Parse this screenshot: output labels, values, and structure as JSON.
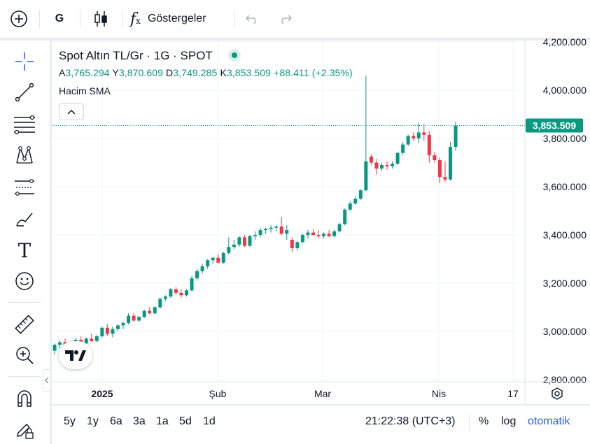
{
  "toolbar": {
    "interval": "G",
    "indicators_label": "Göstergeler"
  },
  "legend": {
    "title": "Spot Altın TL/Gr · 1G · SPOT",
    "open_label": "A",
    "open": "3,765.294",
    "high_label": "Y",
    "high": "3,870.609",
    "low_label": "D",
    "low": "3,749.285",
    "close_label": "K",
    "close": "3,853.509",
    "change": "+88.411 (+2.35%)",
    "indicator": "Hacim SMA"
  },
  "price_axis": {
    "ticks": [
      "4,200.000",
      "4,000.000",
      "3,800.000",
      "3,600.000",
      "3,400.000",
      "3,200.000",
      "3,000.000",
      "2,800.000"
    ],
    "current_price_label": "3,853.509"
  },
  "time_axis": {
    "ticks": [
      "2025",
      "Şub",
      "Mar",
      "Nis",
      "17"
    ]
  },
  "bottombar": {
    "ranges": [
      "5y",
      "1y",
      "6a",
      "3a",
      "1a",
      "5d",
      "1d"
    ],
    "clock": "21:22:38 (UTC+3)",
    "percent": "%",
    "log": "log",
    "auto": "otomatik"
  },
  "colors": {
    "up": "#089981",
    "down": "#f23645",
    "accent": "#2962ff"
  },
  "chart_data": {
    "type": "candlestick",
    "ylim": [
      2800,
      4200
    ],
    "current_price": 3853.509,
    "candles": [
      {
        "o": 2920,
        "h": 2950,
        "l": 2905,
        "c": 2945
      },
      {
        "o": 2945,
        "h": 2965,
        "l": 2930,
        "c": 2955
      },
      {
        "o": 2955,
        "h": 2970,
        "l": 2935,
        "c": 2940
      },
      {
        "o": 2940,
        "h": 2960,
        "l": 2930,
        "c": 2955
      },
      {
        "o": 2955,
        "h": 2975,
        "l": 2945,
        "c": 2965
      },
      {
        "o": 2965,
        "h": 2980,
        "l": 2945,
        "c": 2950
      },
      {
        "o": 2950,
        "h": 2975,
        "l": 2945,
        "c": 2970
      },
      {
        "o": 2970,
        "h": 2990,
        "l": 2955,
        "c": 2960
      },
      {
        "o": 2960,
        "h": 2985,
        "l": 2955,
        "c": 2980
      },
      {
        "o": 2980,
        "h": 3020,
        "l": 2975,
        "c": 3015
      },
      {
        "o": 3015,
        "h": 3030,
        "l": 2980,
        "c": 2990
      },
      {
        "o": 2990,
        "h": 3020,
        "l": 2975,
        "c": 3010
      },
      {
        "o": 3010,
        "h": 3030,
        "l": 3000,
        "c": 3025
      },
      {
        "o": 3025,
        "h": 3040,
        "l": 3010,
        "c": 3035
      },
      {
        "o": 3035,
        "h": 3075,
        "l": 3030,
        "c": 3065
      },
      {
        "o": 3065,
        "h": 3075,
        "l": 3040,
        "c": 3045
      },
      {
        "o": 3045,
        "h": 3065,
        "l": 3040,
        "c": 3060
      },
      {
        "o": 3060,
        "h": 3090,
        "l": 3055,
        "c": 3085
      },
      {
        "o": 3085,
        "h": 3100,
        "l": 3070,
        "c": 3075
      },
      {
        "o": 3075,
        "h": 3105,
        "l": 3070,
        "c": 3100
      },
      {
        "o": 3100,
        "h": 3140,
        "l": 3095,
        "c": 3135
      },
      {
        "o": 3135,
        "h": 3150,
        "l": 3125,
        "c": 3145
      },
      {
        "o": 3145,
        "h": 3180,
        "l": 3140,
        "c": 3175
      },
      {
        "o": 3175,
        "h": 3185,
        "l": 3150,
        "c": 3160
      },
      {
        "o": 3160,
        "h": 3175,
        "l": 3140,
        "c": 3150
      },
      {
        "o": 3150,
        "h": 3175,
        "l": 3145,
        "c": 3170
      },
      {
        "o": 3170,
        "h": 3230,
        "l": 3165,
        "c": 3220
      },
      {
        "o": 3220,
        "h": 3260,
        "l": 3210,
        "c": 3250
      },
      {
        "o": 3250,
        "h": 3280,
        "l": 3240,
        "c": 3270
      },
      {
        "o": 3270,
        "h": 3300,
        "l": 3260,
        "c": 3295
      },
      {
        "o": 3295,
        "h": 3310,
        "l": 3280,
        "c": 3305
      },
      {
        "o": 3305,
        "h": 3320,
        "l": 3280,
        "c": 3285
      },
      {
        "o": 3285,
        "h": 3330,
        "l": 3280,
        "c": 3325
      },
      {
        "o": 3325,
        "h": 3390,
        "l": 3320,
        "c": 3350
      },
      {
        "o": 3350,
        "h": 3380,
        "l": 3340,
        "c": 3360
      },
      {
        "o": 3360,
        "h": 3395,
        "l": 3350,
        "c": 3390
      },
      {
        "o": 3390,
        "h": 3400,
        "l": 3350,
        "c": 3355
      },
      {
        "o": 3355,
        "h": 3400,
        "l": 3350,
        "c": 3395
      },
      {
        "o": 3395,
        "h": 3415,
        "l": 3380,
        "c": 3400
      },
      {
        "o": 3400,
        "h": 3430,
        "l": 3390,
        "c": 3420
      },
      {
        "o": 3420,
        "h": 3430,
        "l": 3405,
        "c": 3425
      },
      {
        "o": 3425,
        "h": 3440,
        "l": 3410,
        "c": 3430
      },
      {
        "o": 3430,
        "h": 3440,
        "l": 3415,
        "c": 3435
      },
      {
        "o": 3435,
        "h": 3475,
        "l": 3400,
        "c": 3405
      },
      {
        "o": 3405,
        "h": 3440,
        "l": 3380,
        "c": 3420
      },
      {
        "o": 3380,
        "h": 3390,
        "l": 3330,
        "c": 3345
      },
      {
        "o": 3345,
        "h": 3375,
        "l": 3335,
        "c": 3370
      },
      {
        "o": 3370,
        "h": 3405,
        "l": 3365,
        "c": 3400
      },
      {
        "o": 3400,
        "h": 3420,
        "l": 3385,
        "c": 3410
      },
      {
        "o": 3410,
        "h": 3425,
        "l": 3395,
        "c": 3400
      },
      {
        "o": 3400,
        "h": 3420,
        "l": 3385,
        "c": 3395
      },
      {
        "o": 3395,
        "h": 3410,
        "l": 3385,
        "c": 3405
      },
      {
        "o": 3405,
        "h": 3420,
        "l": 3390,
        "c": 3395
      },
      {
        "o": 3395,
        "h": 3420,
        "l": 3390,
        "c": 3415
      },
      {
        "o": 3415,
        "h": 3450,
        "l": 3410,
        "c": 3445
      },
      {
        "o": 3445,
        "h": 3510,
        "l": 3440,
        "c": 3505
      },
      {
        "o": 3505,
        "h": 3540,
        "l": 3500,
        "c": 3530
      },
      {
        "o": 3530,
        "h": 3560,
        "l": 3525,
        "c": 3550
      },
      {
        "o": 3550,
        "h": 3590,
        "l": 3545,
        "c": 3585
      },
      {
        "o": 3585,
        "h": 4060,
        "l": 3580,
        "c": 3705
      },
      {
        "o": 3725,
        "h": 3735,
        "l": 3690,
        "c": 3700
      },
      {
        "o": 3700,
        "h": 3715,
        "l": 3650,
        "c": 3675
      },
      {
        "o": 3675,
        "h": 3700,
        "l": 3665,
        "c": 3690
      },
      {
        "o": 3690,
        "h": 3705,
        "l": 3670,
        "c": 3685
      },
      {
        "o": 3685,
        "h": 3705,
        "l": 3675,
        "c": 3695
      },
      {
        "o": 3695,
        "h": 3745,
        "l": 3690,
        "c": 3740
      },
      {
        "o": 3740,
        "h": 3785,
        "l": 3730,
        "c": 3775
      },
      {
        "o": 3775,
        "h": 3815,
        "l": 3770,
        "c": 3810
      },
      {
        "o": 3810,
        "h": 3825,
        "l": 3790,
        "c": 3800
      },
      {
        "o": 3800,
        "h": 3865,
        "l": 3780,
        "c": 3825
      },
      {
        "o": 3825,
        "h": 3860,
        "l": 3790,
        "c": 3815
      },
      {
        "o": 3815,
        "h": 3830,
        "l": 3700,
        "c": 3730
      },
      {
        "o": 3730,
        "h": 3745,
        "l": 3700,
        "c": 3710
      },
      {
        "o": 3710,
        "h": 3720,
        "l": 3615,
        "c": 3640
      },
      {
        "o": 3640,
        "h": 3705,
        "l": 3620,
        "c": 3630
      },
      {
        "o": 3630,
        "h": 3785,
        "l": 3625,
        "c": 3765
      },
      {
        "o": 3765,
        "h": 3870,
        "l": 3749,
        "c": 3853
      }
    ]
  }
}
